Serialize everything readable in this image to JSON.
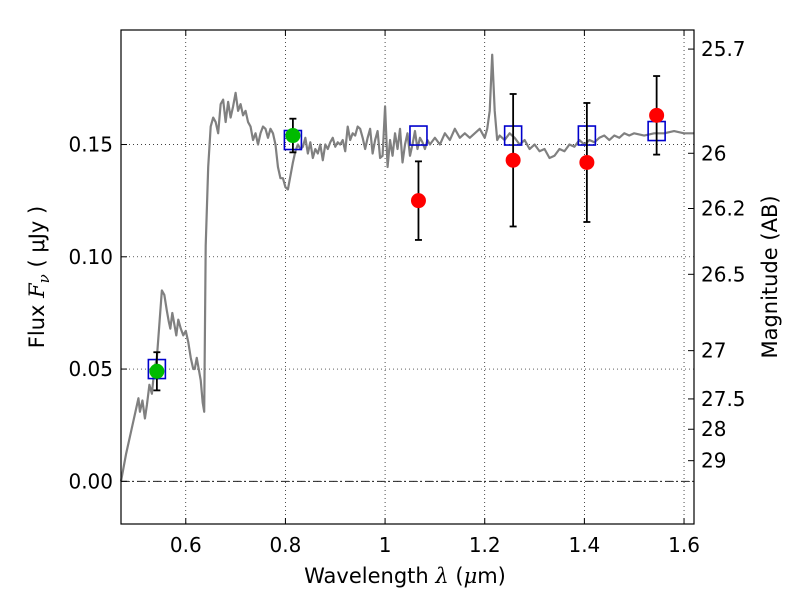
{
  "chart_data": {
    "type": "scatter",
    "title": "",
    "xlabel": {
      "prefix": "Wavelength  ",
      "symbol": "λ",
      "unit_open": " (",
      "unit_mu": "μ",
      "unit_rest": "m)"
    },
    "ylabel": {
      "prefix": "Flux  ",
      "symbol": "F",
      "subscript": "ν",
      "unit": "  ( μJy )"
    },
    "y2label": "Magnitude (AB)",
    "xlim": [
      0.47,
      1.62
    ],
    "ylim": [
      -0.019,
      0.201
    ],
    "grid": true,
    "x_ticks": [
      {
        "value": 0.6,
        "label": "0.6"
      },
      {
        "value": 0.8,
        "label": "0.8"
      },
      {
        "value": 1.0,
        "label": "1"
      },
      {
        "value": 1.2,
        "label": "1.2"
      },
      {
        "value": 1.4,
        "label": "1.4"
      },
      {
        "value": 1.6,
        "label": "1.6"
      }
    ],
    "y_ticks": [
      {
        "value": 0.0,
        "label": "0.00"
      },
      {
        "value": 0.05,
        "label": "0.05"
      },
      {
        "value": 0.1,
        "label": "0.10"
      },
      {
        "value": 0.15,
        "label": "0.15"
      }
    ],
    "magnitude_ticks": [
      {
        "label": "25.7",
        "flux": 0.1925
      },
      {
        "label": "26",
        "flux": 0.1461
      },
      {
        "label": "26.2",
        "flux": 0.1215
      },
      {
        "label": "26.5",
        "flux": 0.0922
      },
      {
        "label": "27",
        "flux": 0.0582
      },
      {
        "label": "27.5",
        "flux": 0.0367
      },
      {
        "label": "28",
        "flux": 0.0232
      },
      {
        "label": "29",
        "flux": 0.0092
      }
    ],
    "zero_line": 0.0,
    "colors": {
      "model": "#808080",
      "model_points": "#0000cc",
      "red_points": "#ff0000",
      "green_points": "#00bb00",
      "errorbars": "#000000"
    },
    "series": [
      {
        "kind": "line",
        "data": [
          [
            0.47,
            0.0
          ],
          [
            0.48,
            0.012
          ],
          [
            0.49,
            0.022
          ],
          [
            0.5,
            0.032
          ],
          [
            0.505,
            0.037
          ],
          [
            0.508,
            0.031
          ],
          [
            0.513,
            0.036
          ],
          [
            0.518,
            0.028
          ],
          [
            0.522,
            0.034
          ],
          [
            0.527,
            0.043
          ],
          [
            0.532,
            0.039
          ],
          [
            0.537,
            0.05
          ],
          [
            0.542,
            0.055
          ],
          [
            0.547,
            0.07
          ],
          [
            0.552,
            0.085
          ],
          [
            0.557,
            0.083
          ],
          [
            0.562,
            0.076
          ],
          [
            0.566,
            0.071
          ],
          [
            0.569,
            0.068
          ],
          [
            0.573,
            0.075
          ],
          [
            0.577,
            0.07
          ],
          [
            0.581,
            0.065
          ],
          [
            0.585,
            0.072
          ],
          [
            0.59,
            0.068
          ],
          [
            0.595,
            0.065
          ],
          [
            0.6,
            0.067
          ],
          [
            0.605,
            0.062
          ],
          [
            0.61,
            0.055
          ],
          [
            0.615,
            0.05
          ],
          [
            0.618,
            0.05
          ],
          [
            0.622,
            0.055
          ],
          [
            0.626,
            0.05
          ],
          [
            0.63,
            0.045
          ],
          [
            0.634,
            0.035
          ],
          [
            0.637,
            0.031
          ],
          [
            0.64,
            0.105
          ],
          [
            0.645,
            0.14
          ],
          [
            0.65,
            0.158
          ],
          [
            0.655,
            0.162
          ],
          [
            0.66,
            0.16
          ],
          [
            0.665,
            0.155
          ],
          [
            0.67,
            0.168
          ],
          [
            0.675,
            0.17
          ],
          [
            0.68,
            0.16
          ],
          [
            0.685,
            0.169
          ],
          [
            0.69,
            0.162
          ],
          [
            0.695,
            0.167
          ],
          [
            0.7,
            0.173
          ],
          [
            0.705,
            0.165
          ],
          [
            0.71,
            0.168
          ],
          [
            0.715,
            0.163
          ],
          [
            0.72,
            0.165
          ],
          [
            0.725,
            0.16
          ],
          [
            0.73,
            0.158
          ],
          [
            0.735,
            0.152
          ],
          [
            0.74,
            0.155
          ],
          [
            0.745,
            0.15
          ],
          [
            0.75,
            0.155
          ],
          [
            0.755,
            0.158
          ],
          [
            0.76,
            0.157
          ],
          [
            0.765,
            0.153
          ],
          [
            0.77,
            0.157
          ],
          [
            0.775,
            0.155
          ],
          [
            0.78,
            0.15
          ],
          [
            0.785,
            0.14
          ],
          [
            0.79,
            0.135
          ],
          [
            0.795,
            0.135
          ],
          [
            0.8,
            0.131
          ],
          [
            0.805,
            0.13
          ],
          [
            0.81,
            0.136
          ],
          [
            0.815,
            0.142
          ],
          [
            0.82,
            0.147
          ],
          [
            0.825,
            0.15
          ],
          [
            0.83,
            0.148
          ],
          [
            0.835,
            0.149
          ],
          [
            0.84,
            0.153
          ],
          [
            0.845,
            0.146
          ],
          [
            0.85,
            0.151
          ],
          [
            0.855,
            0.144
          ],
          [
            0.86,
            0.148
          ],
          [
            0.865,
            0.146
          ],
          [
            0.87,
            0.15
          ],
          [
            0.875,
            0.143
          ],
          [
            0.88,
            0.15
          ],
          [
            0.885,
            0.148
          ],
          [
            0.89,
            0.151
          ],
          [
            0.895,
            0.153
          ],
          [
            0.9,
            0.149
          ],
          [
            0.905,
            0.151
          ],
          [
            0.91,
            0.15
          ],
          [
            0.915,
            0.152
          ],
          [
            0.92,
            0.147
          ],
          [
            0.925,
            0.158
          ],
          [
            0.93,
            0.152
          ],
          [
            0.935,
            0.155
          ],
          [
            0.94,
            0.154
          ],
          [
            0.945,
            0.158
          ],
          [
            0.95,
            0.157
          ],
          [
            0.955,
            0.153
          ],
          [
            0.96,
            0.148
          ],
          [
            0.965,
            0.153
          ],
          [
            0.97,
            0.157
          ],
          [
            0.975,
            0.146
          ],
          [
            0.98,
            0.152
          ],
          [
            0.985,
            0.156
          ],
          [
            0.99,
            0.144
          ],
          [
            0.995,
            0.145
          ],
          [
            1.0,
            0.167
          ],
          [
            1.005,
            0.14
          ],
          [
            1.01,
            0.152
          ],
          [
            1.015,
            0.145
          ],
          [
            1.02,
            0.155
          ],
          [
            1.025,
            0.148
          ],
          [
            1.03,
            0.157
          ],
          [
            1.035,
            0.142
          ],
          [
            1.04,
            0.15
          ],
          [
            1.045,
            0.155
          ],
          [
            1.05,
            0.145
          ],
          [
            1.055,
            0.15
          ],
          [
            1.06,
            0.156
          ],
          [
            1.065,
            0.148
          ],
          [
            1.07,
            0.153
          ],
          [
            1.075,
            0.151
          ],
          [
            1.08,
            0.148
          ],
          [
            1.085,
            0.152
          ],
          [
            1.09,
            0.15
          ],
          [
            1.1,
            0.153
          ],
          [
            1.11,
            0.15
          ],
          [
            1.12,
            0.155
          ],
          [
            1.13,
            0.152
          ],
          [
            1.14,
            0.157
          ],
          [
            1.15,
            0.153
          ],
          [
            1.16,
            0.155
          ],
          [
            1.17,
            0.153
          ],
          [
            1.18,
            0.155
          ],
          [
            1.19,
            0.157
          ],
          [
            1.2,
            0.153
          ],
          [
            1.205,
            0.157
          ],
          [
            1.21,
            0.165
          ],
          [
            1.215,
            0.19
          ],
          [
            1.22,
            0.165
          ],
          [
            1.225,
            0.152
          ],
          [
            1.23,
            0.154
          ],
          [
            1.24,
            0.152
          ],
          [
            1.25,
            0.155
          ],
          [
            1.26,
            0.153
          ],
          [
            1.27,
            0.15
          ],
          [
            1.28,
            0.152
          ],
          [
            1.29,
            0.148
          ],
          [
            1.3,
            0.15
          ],
          [
            1.31,
            0.147
          ],
          [
            1.32,
            0.148
          ],
          [
            1.33,
            0.144
          ],
          [
            1.34,
            0.145
          ],
          [
            1.35,
            0.148
          ],
          [
            1.36,
            0.147
          ],
          [
            1.37,
            0.15
          ],
          [
            1.38,
            0.149
          ],
          [
            1.39,
            0.152
          ],
          [
            1.4,
            0.15
          ],
          [
            1.41,
            0.152
          ],
          [
            1.42,
            0.151
          ],
          [
            1.43,
            0.153
          ],
          [
            1.44,
            0.154
          ],
          [
            1.45,
            0.152
          ],
          [
            1.46,
            0.154
          ],
          [
            1.47,
            0.153
          ],
          [
            1.48,
            0.155
          ],
          [
            1.49,
            0.154
          ],
          [
            1.5,
            0.155
          ],
          [
            1.52,
            0.154
          ],
          [
            1.54,
            0.155
          ],
          [
            1.56,
            0.155
          ],
          [
            1.58,
            0.156
          ],
          [
            1.6,
            0.155
          ],
          [
            1.62,
            0.155
          ]
        ]
      },
      {
        "kind": "squares",
        "points": [
          {
            "x": 0.542,
            "y": 0.05
          },
          {
            "x": 0.815,
            "y": 0.152
          },
          {
            "x": 1.067,
            "y": 0.154
          },
          {
            "x": 1.257,
            "y": 0.154
          },
          {
            "x": 1.405,
            "y": 0.154
          },
          {
            "x": 1.545,
            "y": 0.156
          }
        ]
      },
      {
        "kind": "points",
        "color_key": "green_points",
        "points": [
          {
            "x": 0.542,
            "y": 0.049,
            "err": 0.0085
          },
          {
            "x": 0.815,
            "y": 0.154,
            "err": 0.0075
          }
        ]
      },
      {
        "kind": "points",
        "color_key": "red_points",
        "points": [
          {
            "x": 1.067,
            "y": 0.125,
            "err": 0.0175
          },
          {
            "x": 1.257,
            "y": 0.143,
            "err": 0.0295
          },
          {
            "x": 1.405,
            "y": 0.142,
            "err": 0.0265
          },
          {
            "x": 1.545,
            "y": 0.163,
            "err": 0.0175
          }
        ]
      }
    ]
  }
}
